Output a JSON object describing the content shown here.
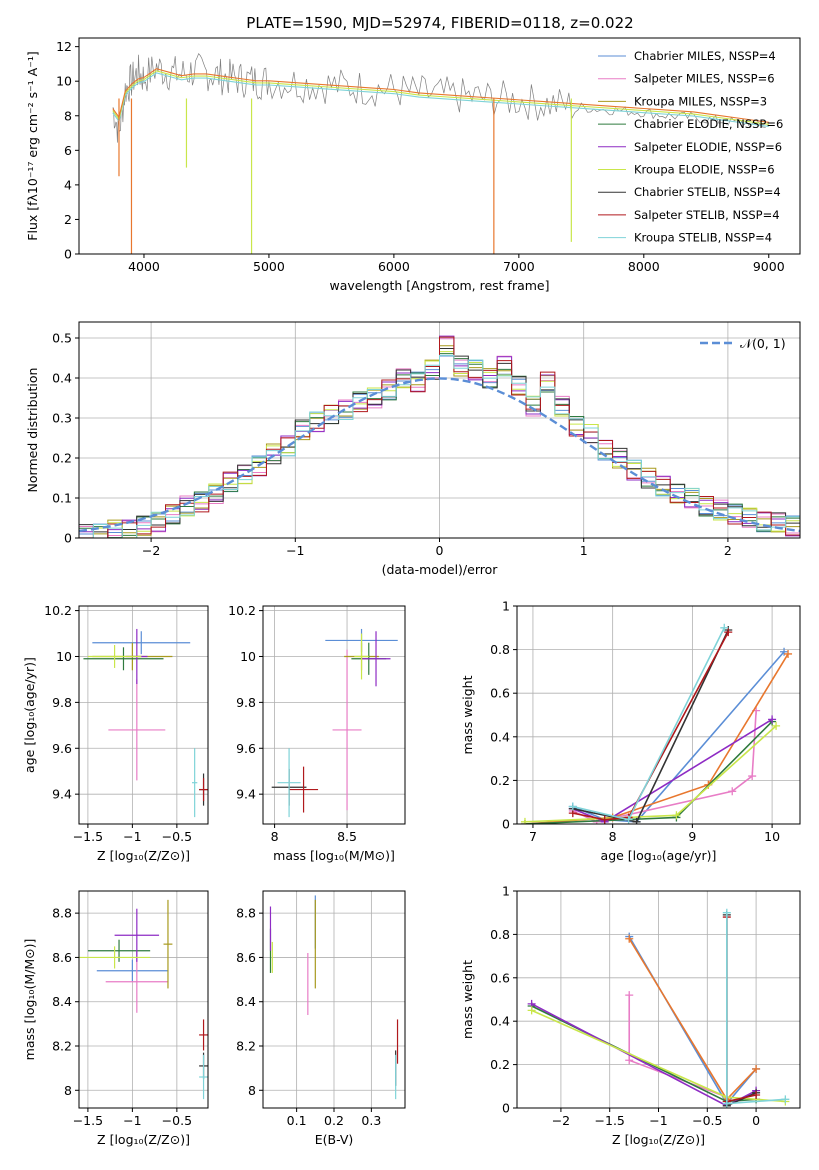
{
  "figure": {
    "title": "PLATE=1590, MJD=52974, FIBERID=0118, z=0.022"
  },
  "models": [
    {
      "label": "Chabrier MILES, N$_{SSP}$=4",
      "legend": "Chabrier MILES, NSSP=4",
      "color": "#5B8ED6"
    },
    {
      "label": "Salpeter MILES",
      "legend": "Salpeter MILES, NSSP=6",
      "color": "#E87DC6"
    },
    {
      "label": "Kroupa MILES",
      "legend": "Kroupa MILES, NSSP=3",
      "color": "#A89A1F"
    },
    {
      "label": "Chabrier ELODIE",
      "legend": "Chabrier ELODIE, NSSP=6",
      "color": "#2F7A3F"
    },
    {
      "label": "Salpeter ELODIE",
      "legend": "Salpeter ELODIE, NSSP=6",
      "color": "#8E2BC4"
    },
    {
      "label": "Kroupa ELODIE",
      "legend": "Kroupa ELODIE, NSSP=6",
      "color": "#C9E64A"
    },
    {
      "label": "Chabrier STELIB",
      "legend": "Chabrier STELIB, NSSP=4",
      "color": "#333333"
    },
    {
      "label": "Salpeter STELIB",
      "legend": "Salpeter STELIB, NSSP=4",
      "color": "#B0191D"
    },
    {
      "label": "Kroupa STELIB",
      "legend": "Kroupa STELIB, NSSP=4",
      "color": "#7FD3D8"
    }
  ],
  "extra_colors": {
    "data": "#7f7f7f",
    "orange_model": "#E8772E",
    "normal_curve": "#5B8ED6"
  },
  "chart_data": [
    {
      "id": "spectrum",
      "type": "line",
      "xlabel": "wavelength [Angstrom, rest frame]",
      "ylabel": "Flux [fλ10⁻¹⁷ erg cm⁻² s⁻¹ A⁻¹]",
      "xlim": [
        3480,
        9250
      ],
      "ylim": [
        0,
        12.5
      ],
      "xticks": [
        4000,
        5000,
        6000,
        7000,
        8000,
        9000
      ],
      "yticks": [
        0,
        2,
        4,
        6,
        8,
        10,
        12
      ],
      "grid": false,
      "legend": "top-right",
      "data_series": {
        "x": [
          3750,
          3800,
          3850,
          3900,
          3950,
          4000,
          4100,
          4200,
          4300,
          4400,
          4500,
          4600,
          4700,
          4800,
          4900,
          5000,
          5200,
          5400,
          5600,
          5800,
          6000,
          6200,
          6400,
          6600,
          6800,
          7000,
          7200,
          7400,
          7600,
          7800,
          8000,
          8200,
          8400,
          8600,
          8800,
          9000
        ],
        "y": [
          8.5,
          7.0,
          9.5,
          10.0,
          10.5,
          10.2,
          10.8,
          10.5,
          10.4,
          10.6,
          10.5,
          10.3,
          10.2,
          10.1,
          10.0,
          10.0,
          9.9,
          9.8,
          9.7,
          9.6,
          9.5,
          9.3,
          9.2,
          9.1,
          9.0,
          8.9,
          8.7,
          8.6,
          8.4,
          8.3,
          8.2,
          8.0,
          7.9,
          7.7,
          7.6,
          7.4
        ]
      },
      "model_series": {
        "x": [
          3750,
          3800,
          3850,
          3900,
          3950,
          4000,
          4100,
          4200,
          4300,
          4400,
          4500,
          4600,
          4700,
          4800,
          4900,
          5000,
          5200,
          5400,
          5600,
          5800,
          6000,
          6200,
          6400,
          6600,
          6800,
          7000,
          7200,
          7400,
          7600,
          7800,
          8000,
          8200,
          8400,
          8600,
          8800,
          9000
        ],
        "y": [
          8.3,
          7.8,
          9.3,
          9.7,
          10.0,
          10.1,
          10.6,
          10.4,
          10.2,
          10.3,
          10.3,
          10.2,
          10.1,
          10.0,
          9.9,
          9.9,
          9.8,
          9.7,
          9.6,
          9.5,
          9.4,
          9.2,
          9.1,
          9.0,
          8.9,
          8.8,
          8.7,
          8.6,
          8.5,
          8.4,
          8.3,
          8.2,
          8.1,
          7.9,
          7.7,
          7.5
        ]
      }
    },
    {
      "id": "residuals",
      "type": "bar",
      "xlabel": "(data-model)/error",
      "ylabel": "Normed distribution",
      "xlim": [
        -2.5,
        2.5
      ],
      "ylim": [
        0,
        0.54
      ],
      "xticks": [
        -2,
        -1,
        0,
        1,
        2
      ],
      "yticks": [
        0.0,
        0.1,
        0.2,
        0.3,
        0.4,
        0.5
      ],
      "grid": true,
      "legend": "top-right",
      "normal_label": "𝒩(0, 1)",
      "bin_edges": [
        -2.5,
        -2.4,
        -2.3,
        -2.2,
        -2.1,
        -2.0,
        -1.9,
        -1.8,
        -1.7,
        -1.6,
        -1.5,
        -1.4,
        -1.3,
        -1.2,
        -1.1,
        -1.0,
        -0.9,
        -0.8,
        -0.7,
        -0.6,
        -0.5,
        -0.4,
        -0.3,
        -0.2,
        -0.1,
        0.0,
        0.1,
        0.2,
        0.3,
        0.4,
        0.5,
        0.6,
        0.7,
        0.8,
        0.9,
        1.0,
        1.1,
        1.2,
        1.3,
        1.4,
        1.5,
        1.6,
        1.7,
        1.8,
        1.9,
        2.0,
        2.1,
        2.2,
        2.3,
        2.4,
        2.5
      ],
      "hist_values": [
        0.01,
        0.01,
        0.02,
        0.02,
        0.03,
        0.04,
        0.06,
        0.08,
        0.09,
        0.11,
        0.14,
        0.16,
        0.18,
        0.21,
        0.23,
        0.27,
        0.29,
        0.31,
        0.32,
        0.34,
        0.35,
        0.37,
        0.4,
        0.39,
        0.42,
        0.48,
        0.43,
        0.42,
        0.4,
        0.43,
        0.38,
        0.33,
        0.39,
        0.33,
        0.28,
        0.26,
        0.22,
        0.2,
        0.17,
        0.15,
        0.13,
        0.11,
        0.1,
        0.08,
        0.07,
        0.06,
        0.05,
        0.04,
        0.04,
        0.03
      ]
    },
    {
      "id": "age-vs-Z",
      "type": "scatter",
      "xlabel": "Z [log₁₀(Z/Z⊙)]",
      "ylabel": "age  [log₁₀(age/yr)]",
      "xlim": [
        -1.6,
        -0.15
      ],
      "ylim": [
        9.27,
        10.22
      ],
      "xticks": [
        -1.5,
        -1.0,
        -0.5
      ],
      "yticks": [
        9.4,
        9.6,
        9.8,
        10.0,
        10.2
      ],
      "grid": true,
      "points": [
        {
          "model": 0,
          "x": -0.9,
          "y": 10.06,
          "xerr": 0.55,
          "yerr": 0.05
        },
        {
          "model": 1,
          "x": -0.95,
          "y": 9.68,
          "xerr": 0.32,
          "yerr": 0.22
        },
        {
          "model": 2,
          "x": -1.0,
          "y": 10.0,
          "xerr": 0.45,
          "yerr": 0.06
        },
        {
          "model": 3,
          "x": -1.1,
          "y": 9.99,
          "xerr": 0.45,
          "yerr": 0.05
        },
        {
          "model": 4,
          "x": -0.95,
          "y": 10.0,
          "xerr": 0.12,
          "yerr": 0.12
        },
        {
          "model": 5,
          "x": -1.2,
          "y": 10.0,
          "xerr": 0.3,
          "yerr": 0.05
        },
        {
          "model": 6,
          "x": -0.2,
          "y": 9.42,
          "xerr": 0.05,
          "yerr": 0.07
        },
        {
          "model": 7,
          "x": -0.2,
          "y": 9.42,
          "xerr": 0.05,
          "yerr": 0.05
        },
        {
          "model": 8,
          "x": -0.3,
          "y": 9.45,
          "xerr": 0.03,
          "yerr": 0.15
        }
      ]
    },
    {
      "id": "age-vs-mass",
      "type": "scatter",
      "xlabel": "mass [log₁₀(M/M⊙)]",
      "ylabel": "",
      "xlim": [
        7.92,
        8.9
      ],
      "ylim": [
        9.27,
        10.22
      ],
      "xticks": [
        8.0,
        8.5
      ],
      "yticks": [
        9.4,
        9.6,
        9.8,
        10.0,
        10.2
      ],
      "grid": true,
      "points": [
        {
          "model": 0,
          "x": 8.6,
          "y": 10.07,
          "xerr": 0.25,
          "yerr": 0.05
        },
        {
          "model": 1,
          "x": 8.5,
          "y": 9.68,
          "xerr": 0.1,
          "yerr": 0.35
        },
        {
          "model": 2,
          "x": 8.6,
          "y": 10.0,
          "xerr": 0.12,
          "yerr": 0.06
        },
        {
          "model": 3,
          "x": 8.65,
          "y": 9.99,
          "xerr": 0.12,
          "yerr": 0.07
        },
        {
          "model": 4,
          "x": 8.7,
          "y": 9.99,
          "xerr": 0.1,
          "yerr": 0.12
        },
        {
          "model": 5,
          "x": 8.6,
          "y": 10.0,
          "xerr": 0.05,
          "yerr": 0.1
        },
        {
          "model": 6,
          "x": 8.1,
          "y": 9.43,
          "xerr": 0.12,
          "yerr": 0.08
        },
        {
          "model": 7,
          "x": 8.2,
          "y": 9.42,
          "xerr": 0.1,
          "yerr": 0.1
        },
        {
          "model": 8,
          "x": 8.1,
          "y": 9.45,
          "xerr": 0.08,
          "yerr": 0.15
        }
      ]
    },
    {
      "id": "weight-vs-age",
      "type": "line",
      "xlabel": "age  [log₁₀(age/yr)]",
      "ylabel": "mass weight",
      "xlim": [
        6.8,
        10.35
      ],
      "ylim": [
        0,
        1.0
      ],
      "xticks": [
        7,
        8,
        9,
        10
      ],
      "yticks": [
        0.0,
        0.2,
        0.4,
        0.6,
        0.8,
        1.0
      ],
      "grid": true,
      "series": [
        {
          "model": 0,
          "x": [
            7.5,
            7.9,
            8.3,
            10.15
          ],
          "y": [
            0.08,
            0.02,
            0.01,
            0.79
          ]
        },
        {
          "model": 1,
          "x": [
            7.5,
            7.8,
            9.5,
            9.75,
            9.8
          ],
          "y": [
            0.06,
            0.01,
            0.15,
            0.22,
            0.52
          ]
        },
        {
          "model": 2,
          "x": [
            6.9,
            8.0,
            9.2,
            10.2
          ],
          "y": [
            0.0,
            0.03,
            0.18,
            0.78
          ]
        },
        {
          "model": 3,
          "x": [
            6.9,
            8.8,
            10.0
          ],
          "y": [
            0.0,
            0.03,
            0.47
          ]
        },
        {
          "model": 4,
          "x": [
            7.5,
            7.9,
            10.0
          ],
          "y": [
            0.07,
            0.01,
            0.48
          ]
        },
        {
          "model": 5,
          "x": [
            6.9,
            8.8,
            10.05
          ],
          "y": [
            0.01,
            0.04,
            0.45
          ]
        },
        {
          "model": 6,
          "x": [
            7.5,
            8.3,
            9.45
          ],
          "y": [
            0.07,
            0.01,
            0.89
          ]
        },
        {
          "model": 7,
          "x": [
            7.5,
            7.9,
            8.2,
            9.45
          ],
          "y": [
            0.05,
            0.02,
            0.03,
            0.88
          ]
        },
        {
          "model": 8,
          "x": [
            7.5,
            8.2,
            9.4
          ],
          "y": [
            0.08,
            0.02,
            0.9
          ]
        }
      ]
    },
    {
      "id": "mass-vs-Z",
      "type": "scatter",
      "xlabel": "Z [log₁₀(Z/Z⊙)]",
      "ylabel": "mass [log₁₀(M/M⊙)]",
      "xlim": [
        -1.6,
        -0.15
      ],
      "ylim": [
        7.92,
        8.9
      ],
      "xticks": [
        -1.5,
        -1.0,
        -0.5
      ],
      "yticks": [
        8.0,
        8.2,
        8.4,
        8.6,
        8.8
      ],
      "grid": true,
      "points": [
        {
          "model": 0,
          "x": -1.0,
          "y": 8.54,
          "xerr": 0.4,
          "yerr": 0.05
        },
        {
          "model": 1,
          "x": -0.95,
          "y": 8.49,
          "xerr": 0.35,
          "yerr": 0.14
        },
        {
          "model": 2,
          "x": -0.6,
          "y": 8.66,
          "xerr": 0.05,
          "yerr": 0.2
        },
        {
          "model": 3,
          "x": -1.15,
          "y": 8.63,
          "xerr": 0.35,
          "yerr": 0.05
        },
        {
          "model": 4,
          "x": -0.95,
          "y": 8.7,
          "xerr": 0.25,
          "yerr": 0.12
        },
        {
          "model": 5,
          "x": -1.2,
          "y": 8.6,
          "xerr": 0.4,
          "yerr": 0.05
        },
        {
          "model": 6,
          "x": -0.2,
          "y": 8.11,
          "xerr": 0.05,
          "yerr": 0.06
        },
        {
          "model": 7,
          "x": -0.2,
          "y": 8.25,
          "xerr": 0.05,
          "yerr": 0.07
        },
        {
          "model": 8,
          "x": -0.2,
          "y": 8.06,
          "xerr": 0.05,
          "yerr": 0.1
        }
      ]
    },
    {
      "id": "mass-vs-EBV",
      "type": "scatter",
      "xlabel": "E(B-V)",
      "ylabel": "",
      "xlim": [
        0.01,
        0.39
      ],
      "ylim": [
        7.92,
        8.9
      ],
      "xticks": [
        0.1,
        0.2,
        0.3
      ],
      "yticks": [
        8.0,
        8.2,
        8.4,
        8.6,
        8.8
      ],
      "grid": true,
      "points": [
        {
          "model": 0,
          "x": 0.15,
          "y": 8.76,
          "xerr": 0.0,
          "yerr": 0.12
        },
        {
          "model": 1,
          "x": 0.13,
          "y": 8.48,
          "xerr": 0.0,
          "yerr": 0.14
        },
        {
          "model": 2,
          "x": 0.15,
          "y": 8.66,
          "xerr": 0.0,
          "yerr": 0.2
        },
        {
          "model": 3,
          "x": 0.03,
          "y": 8.63,
          "xerr": 0.0,
          "yerr": 0.1
        },
        {
          "model": 4,
          "x": 0.03,
          "y": 8.73,
          "xerr": 0.0,
          "yerr": 0.1
        },
        {
          "model": 5,
          "x": 0.035,
          "y": 8.6,
          "xerr": 0.0,
          "yerr": 0.07
        },
        {
          "model": 6,
          "x": 0.365,
          "y": 8.1,
          "xerr": 0.0,
          "yerr": 0.08
        },
        {
          "model": 7,
          "x": 0.37,
          "y": 8.22,
          "xerr": 0.0,
          "yerr": 0.1
        },
        {
          "model": 8,
          "x": 0.365,
          "y": 8.06,
          "xerr": 0.0,
          "yerr": 0.1
        }
      ]
    },
    {
      "id": "weight-vs-Z",
      "type": "line",
      "xlabel": "Z [log₁₀(Z/Z⊙)]",
      "ylabel": "mass weight",
      "xlim": [
        -2.45,
        0.45
      ],
      "ylim": [
        0,
        1.0
      ],
      "xticks": [
        -2.0,
        -1.5,
        -1.0,
        -0.5,
        0.0
      ],
      "yticks": [
        0.0,
        0.2,
        0.4,
        0.6,
        0.8,
        1.0
      ],
      "grid": true,
      "series": [
        {
          "model": 0,
          "x": [
            -1.3,
            -0.3,
            0.0
          ],
          "y": [
            0.79,
            0.02,
            0.18
          ]
        },
        {
          "model": 1,
          "x": [
            -1.3,
            -1.3,
            -0.3
          ],
          "y": [
            0.52,
            0.22,
            0.05
          ]
        },
        {
          "model": 2,
          "x": [
            -1.3,
            -0.3,
            0.0
          ],
          "y": [
            0.78,
            0.04,
            0.18
          ]
        },
        {
          "model": 3,
          "x": [
            -2.3,
            -0.3,
            0.0
          ],
          "y": [
            0.47,
            0.03,
            0.04
          ]
        },
        {
          "model": 4,
          "x": [
            -2.3,
            -0.3,
            0.0
          ],
          "y": [
            0.48,
            0.01,
            0.08
          ]
        },
        {
          "model": 5,
          "x": [
            -2.3,
            -0.3,
            0.3
          ],
          "y": [
            0.45,
            0.05,
            0.03
          ]
        },
        {
          "model": 6,
          "x": [
            -0.3,
            -0.3,
            0.0
          ],
          "y": [
            0.89,
            0.01,
            0.07
          ]
        },
        {
          "model": 7,
          "x": [
            -0.3,
            -0.3,
            0.0
          ],
          "y": [
            0.88,
            0.03,
            0.06
          ]
        },
        {
          "model": 8,
          "x": [
            -0.3,
            -0.3,
            0.3
          ],
          "y": [
            0.9,
            0.02,
            0.04
          ]
        }
      ]
    }
  ]
}
